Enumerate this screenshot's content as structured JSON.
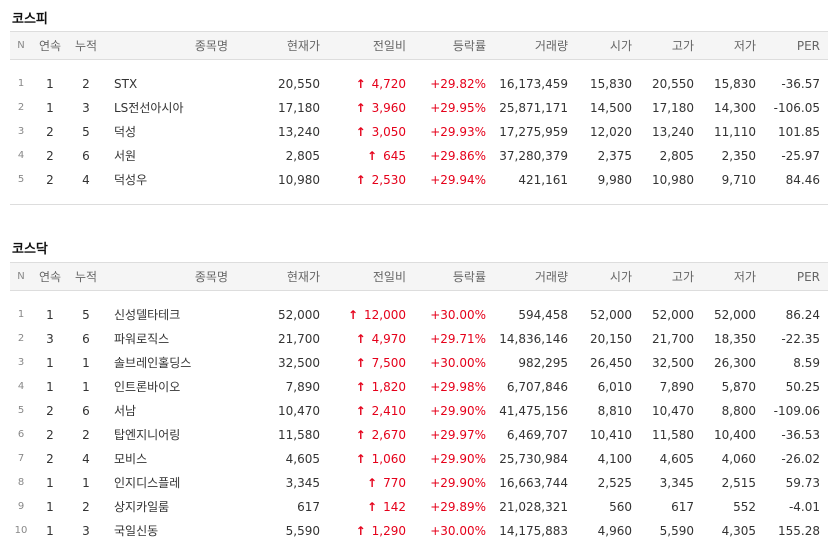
{
  "columns": [
    "N",
    "연속",
    "누적",
    "종목명",
    "현재가",
    "전일비",
    "등락률",
    "거래량",
    "시가",
    "고가",
    "저가",
    "PER"
  ],
  "up_color": "#e5001a",
  "kospi": {
    "title": "코스피",
    "rows": [
      {
        "n": "1",
        "con": "1",
        "acc": "2",
        "name": "STX",
        "price": "20,550",
        "change": "4,720",
        "rate": "+29.82%",
        "volume": "16,173,459",
        "open": "15,830",
        "high": "20,550",
        "low": "15,830",
        "per": "-36.57"
      },
      {
        "n": "2",
        "con": "1",
        "acc": "3",
        "name": "LS전선아시아",
        "price": "17,180",
        "change": "3,960",
        "rate": "+29.95%",
        "volume": "25,871,171",
        "open": "14,500",
        "high": "17,180",
        "low": "14,300",
        "per": "-106.05"
      },
      {
        "n": "3",
        "con": "2",
        "acc": "5",
        "name": "덕성",
        "price": "13,240",
        "change": "3,050",
        "rate": "+29.93%",
        "volume": "17,275,959",
        "open": "12,020",
        "high": "13,240",
        "low": "11,110",
        "per": "101.85"
      },
      {
        "n": "4",
        "con": "2",
        "acc": "6",
        "name": "서원",
        "price": "2,805",
        "change": "645",
        "rate": "+29.86%",
        "volume": "37,280,379",
        "open": "2,375",
        "high": "2,805",
        "low": "2,350",
        "per": "-25.97"
      },
      {
        "n": "5",
        "con": "2",
        "acc": "4",
        "name": "덕성우",
        "price": "10,980",
        "change": "2,530",
        "rate": "+29.94%",
        "volume": "421,161",
        "open": "9,980",
        "high": "10,980",
        "low": "9,710",
        "per": "84.46"
      }
    ]
  },
  "kosdaq": {
    "title": "코스닥",
    "rows": [
      {
        "n": "1",
        "con": "1",
        "acc": "5",
        "name": "신성델타테크",
        "price": "52,000",
        "change": "12,000",
        "rate": "+30.00%",
        "volume": "594,458",
        "open": "52,000",
        "high": "52,000",
        "low": "52,000",
        "per": "86.24"
      },
      {
        "n": "2",
        "con": "3",
        "acc": "6",
        "name": "파워로직스",
        "price": "21,700",
        "change": "4,970",
        "rate": "+29.71%",
        "volume": "14,836,146",
        "open": "20,150",
        "high": "21,700",
        "low": "18,350",
        "per": "-22.35"
      },
      {
        "n": "3",
        "con": "1",
        "acc": "1",
        "name": "솔브레인홀딩스",
        "price": "32,500",
        "change": "7,500",
        "rate": "+30.00%",
        "volume": "982,295",
        "open": "26,450",
        "high": "32,500",
        "low": "26,300",
        "per": "8.59"
      },
      {
        "n": "4",
        "con": "1",
        "acc": "1",
        "name": "인트론바이오",
        "price": "7,890",
        "change": "1,820",
        "rate": "+29.98%",
        "volume": "6,707,846",
        "open": "6,010",
        "high": "7,890",
        "low": "5,870",
        "per": "50.25"
      },
      {
        "n": "5",
        "con": "2",
        "acc": "6",
        "name": "서남",
        "price": "10,470",
        "change": "2,410",
        "rate": "+29.90%",
        "volume": "41,475,156",
        "open": "8,810",
        "high": "10,470",
        "low": "8,800",
        "per": "-109.06"
      },
      {
        "n": "6",
        "con": "2",
        "acc": "2",
        "name": "탑엔지니어링",
        "price": "11,580",
        "change": "2,670",
        "rate": "+29.97%",
        "volume": "6,469,707",
        "open": "10,410",
        "high": "11,580",
        "low": "10,400",
        "per": "-36.53"
      },
      {
        "n": "7",
        "con": "2",
        "acc": "4",
        "name": "모비스",
        "price": "4,605",
        "change": "1,060",
        "rate": "+29.90%",
        "volume": "25,730,984",
        "open": "4,100",
        "high": "4,605",
        "low": "4,060",
        "per": "-26.02"
      },
      {
        "n": "8",
        "con": "1",
        "acc": "1",
        "name": "인지디스플레",
        "price": "3,345",
        "change": "770",
        "rate": "+29.90%",
        "volume": "16,663,744",
        "open": "2,525",
        "high": "3,345",
        "low": "2,515",
        "per": "59.73"
      },
      {
        "n": "9",
        "con": "1",
        "acc": "2",
        "name": "상지카일룸",
        "price": "617",
        "change": "142",
        "rate": "+29.89%",
        "volume": "21,028,321",
        "open": "560",
        "high": "617",
        "low": "552",
        "per": "-4.01"
      },
      {
        "n": "10",
        "con": "1",
        "acc": "3",
        "name": "국일신동",
        "price": "5,590",
        "change": "1,290",
        "rate": "+30.00%",
        "volume": "14,175,883",
        "open": "4,960",
        "high": "5,590",
        "low": "4,305",
        "per": "155.28"
      }
    ]
  }
}
